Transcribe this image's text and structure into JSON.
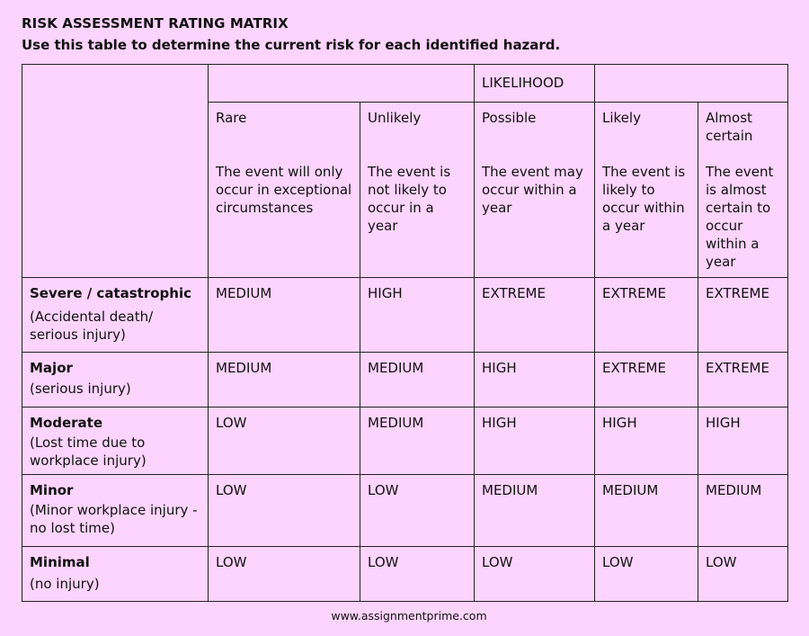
{
  "title": "RISK ASSESSMENT RATING MATRIX",
  "subtitle": "Use this table to determine the current risk for each identified hazard.",
  "likelihood_header": "LIKELIHOOD",
  "likelihood": [
    {
      "name": "Rare",
      "desc": "The event will only occur in exceptional circumstances"
    },
    {
      "name": "Unlikely",
      "desc": "The event is not likely to occur in a year"
    },
    {
      "name": "Possible",
      "desc": "The event may occur within a year"
    },
    {
      "name": "Likely",
      "desc": "The event is likely to occur within a year"
    },
    {
      "name": "Almost certain",
      "desc": "The event is almost certain to occur within a year"
    }
  ],
  "rows": [
    {
      "name": "Severe / catastrophic",
      "desc": "(Accidental death/ serious injury)",
      "ratings": [
        "MEDIUM",
        "HIGH",
        "EXTREME",
        "EXTREME",
        "EXTREME"
      ]
    },
    {
      "name": "Major",
      "desc": "(serious injury)",
      "ratings": [
        "MEDIUM",
        "MEDIUM",
        "HIGH",
        "EXTREME",
        "EXTREME"
      ]
    },
    {
      "name": "Moderate",
      "desc": "(Lost time due to workplace injury)",
      "ratings": [
        "LOW",
        "MEDIUM",
        "HIGH",
        "HIGH",
        "HIGH"
      ]
    },
    {
      "name": "Minor",
      "desc": "(Minor workplace injury - no lost time)",
      "ratings": [
        "LOW",
        "LOW",
        "MEDIUM",
        "MEDIUM",
        "MEDIUM"
      ]
    },
    {
      "name": "Minimal",
      "desc": "(no injury)",
      "ratings": [
        "LOW",
        "LOW",
        "LOW",
        "LOW",
        "LOW"
      ]
    }
  ],
  "footer": "www.assignmentprime.com"
}
